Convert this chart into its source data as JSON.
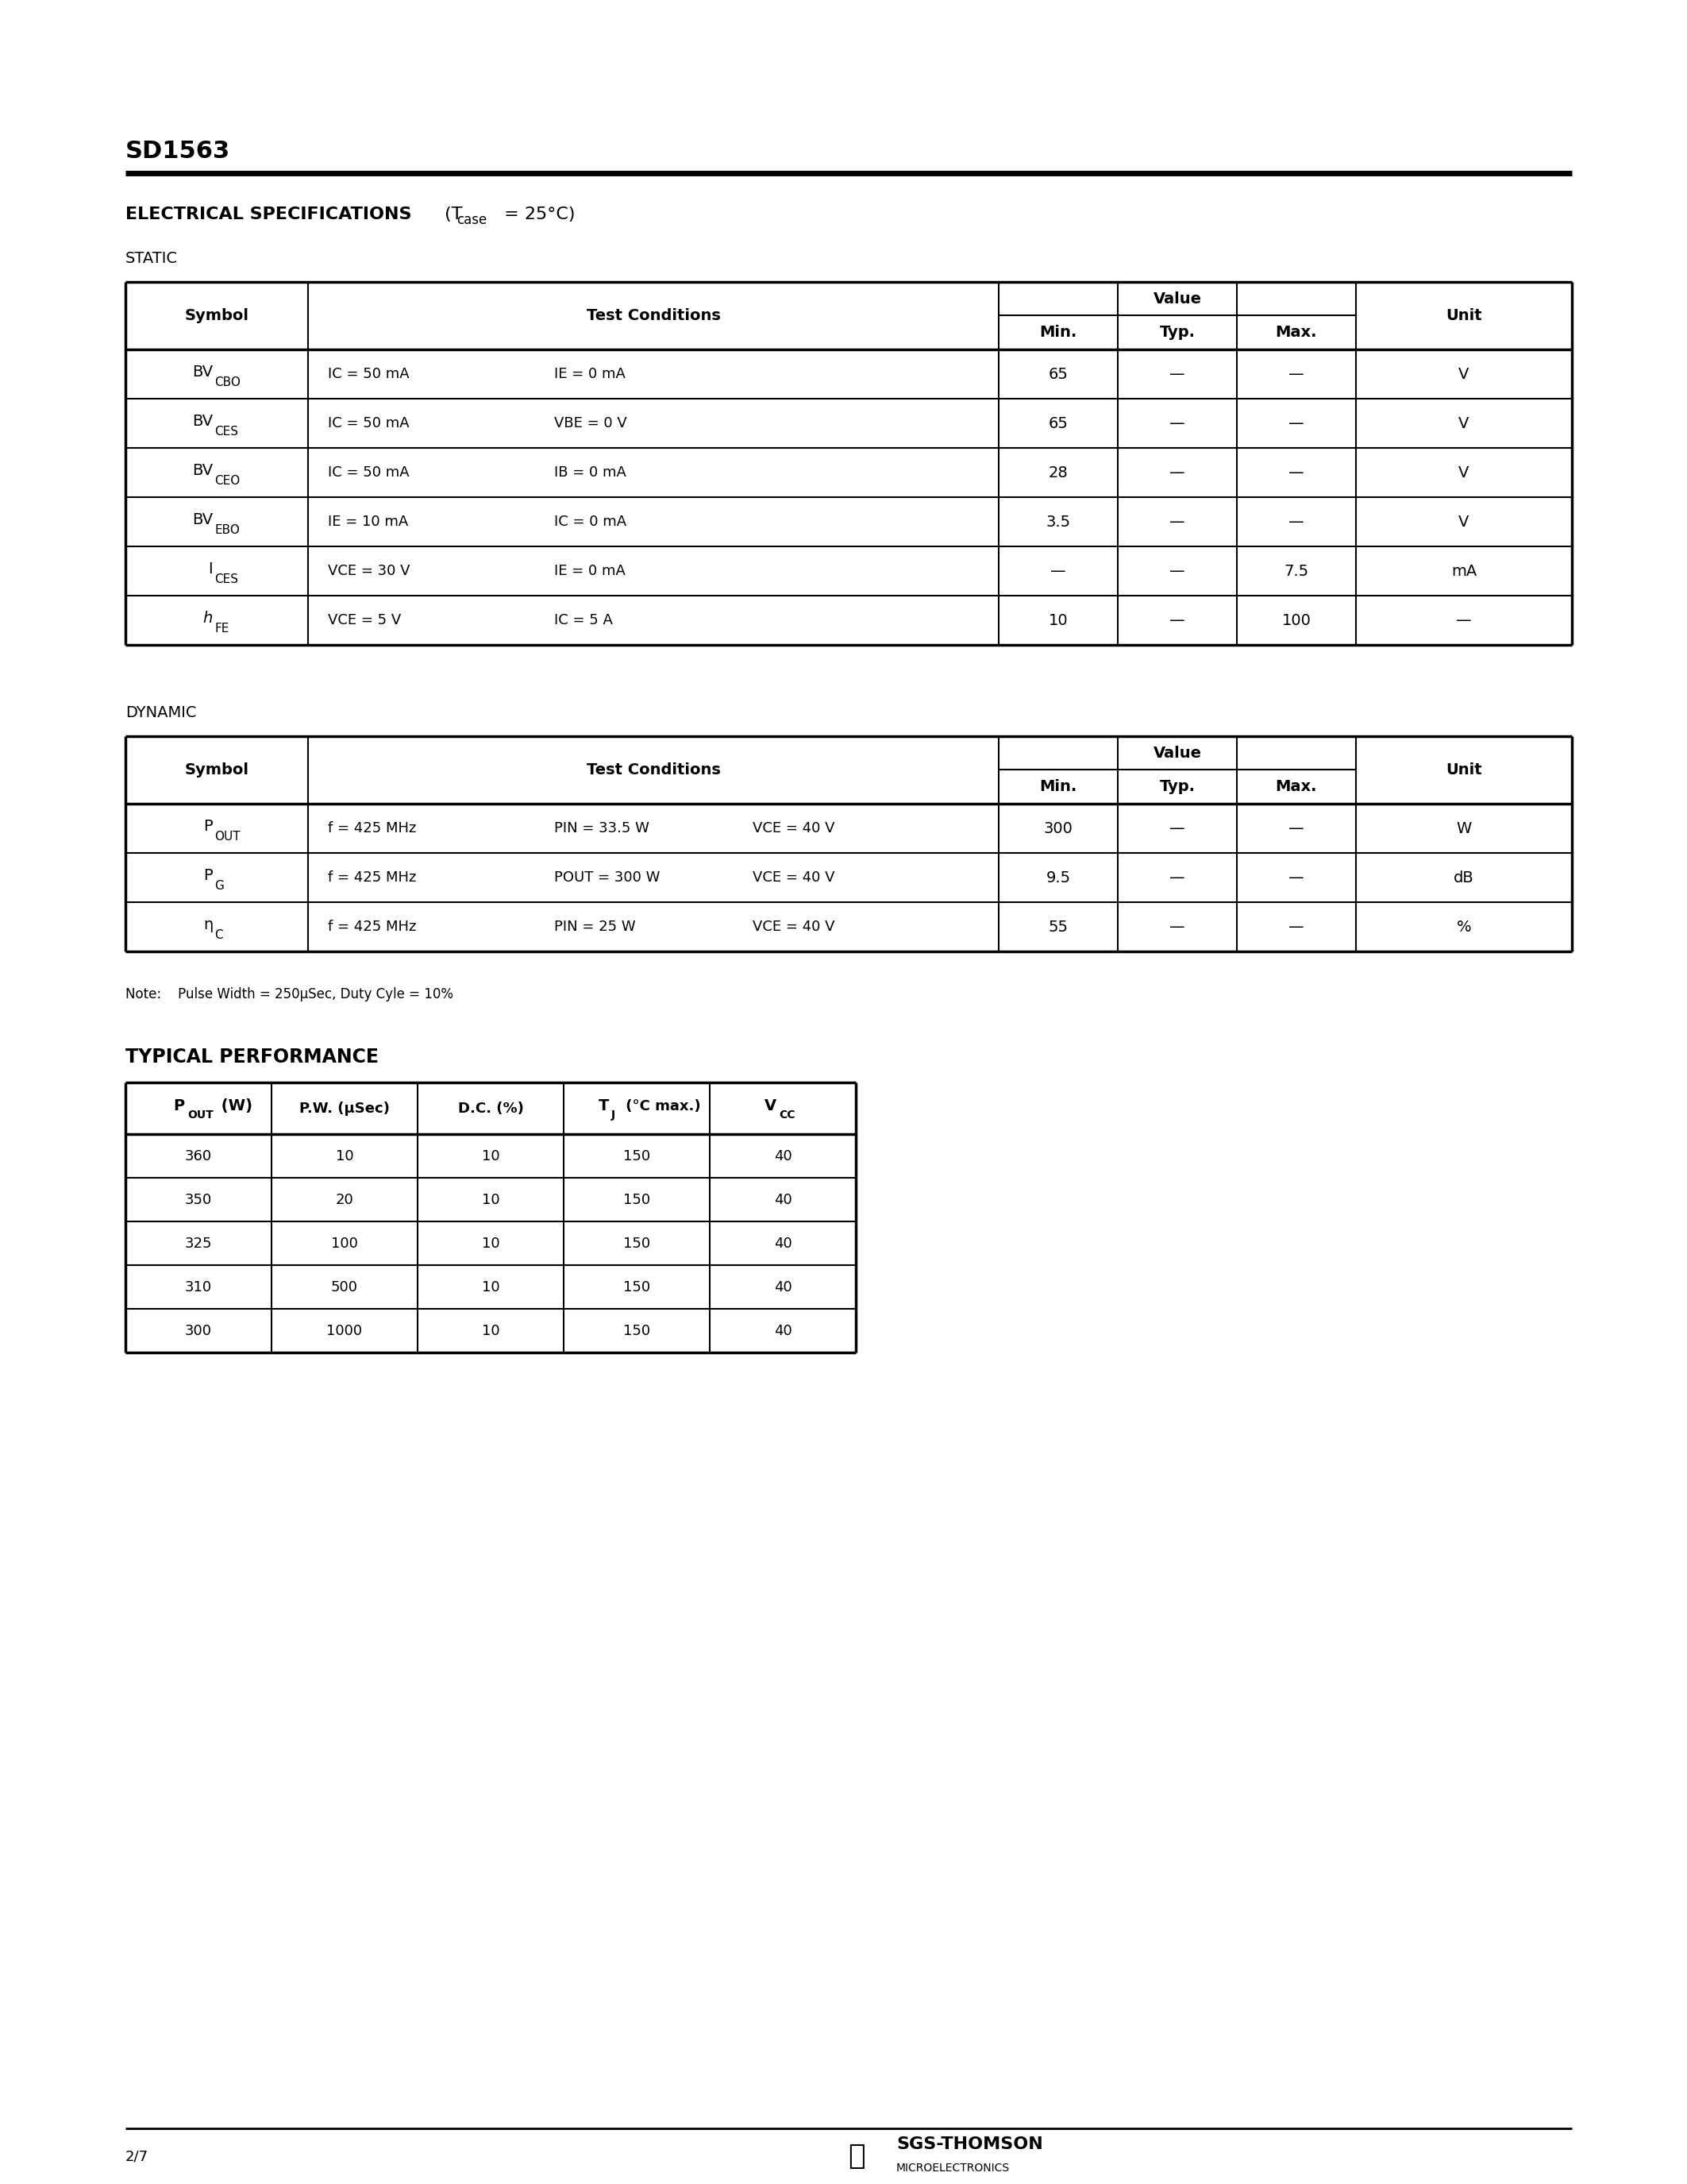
{
  "title": "SD1563",
  "elec_spec_bold": "ELECTRICAL SPECIFICATIONS",
  "elec_spec_normal": " (T",
  "elec_spec_sub": "case",
  "elec_spec_end": " = 25°C)",
  "static_label": "STATIC",
  "dynamic_label": "DYNAMIC",
  "typical_label": "TYPICAL PERFORMANCE",
  "note_text": "Note:    Pulse Width = 250μSec, Duty Cyle = 10%",
  "static_text": [
    [
      "BV",
      "CBO",
      "IC = 50 mA",
      "IE = 0 mA",
      "65",
      "—",
      "—",
      "V"
    ],
    [
      "BV",
      "CES",
      "IC = 50 mA",
      "VBE = 0 V",
      "65",
      "—",
      "—",
      "V"
    ],
    [
      "BV",
      "CEO",
      "IC = 50 mA",
      "IB = 0 mA",
      "28",
      "—",
      "—",
      "V"
    ],
    [
      "BV",
      "EBO",
      "IE = 10 mA",
      "IC = 0 mA",
      "3.5",
      "—",
      "—",
      "V"
    ],
    [
      "I",
      "CES",
      "VCE = 30 V",
      "IE = 0 mA",
      "—",
      "—",
      "7.5",
      "mA"
    ],
    [
      "h",
      "FE",
      "VCE = 5 V",
      "IC = 5 A",
      "10",
      "—",
      "100",
      "—"
    ]
  ],
  "dyn_text": [
    [
      "P",
      "OUT",
      "f = 425 MHz",
      "PIN = 33.5 W",
      "VCE = 40 V",
      "300",
      "—",
      "—",
      "W"
    ],
    [
      "P",
      "G",
      "f = 425 MHz",
      "POUT = 300 W",
      "VCE = 40 V",
      "9.5",
      "—",
      "—",
      "dB"
    ],
    [
      "η",
      "C",
      "f = 425 MHz",
      "PIN = 25 W",
      "VCE = 40 V",
      "55",
      "—",
      "—",
      "%"
    ]
  ],
  "typ_data": [
    [
      "360",
      "10",
      "10",
      "150",
      "40"
    ],
    [
      "350",
      "20",
      "10",
      "150",
      "40"
    ],
    [
      "325",
      "100",
      "10",
      "150",
      "40"
    ],
    [
      "310",
      "500",
      "10",
      "150",
      "40"
    ],
    [
      "300",
      "1000",
      "10",
      "150",
      "40"
    ]
  ],
  "footer_left": "2/7",
  "footer_logo_text": "SGS-THOMSON",
  "footer_sub_text": "MICROELECTRONICS",
  "bg": "#ffffff"
}
